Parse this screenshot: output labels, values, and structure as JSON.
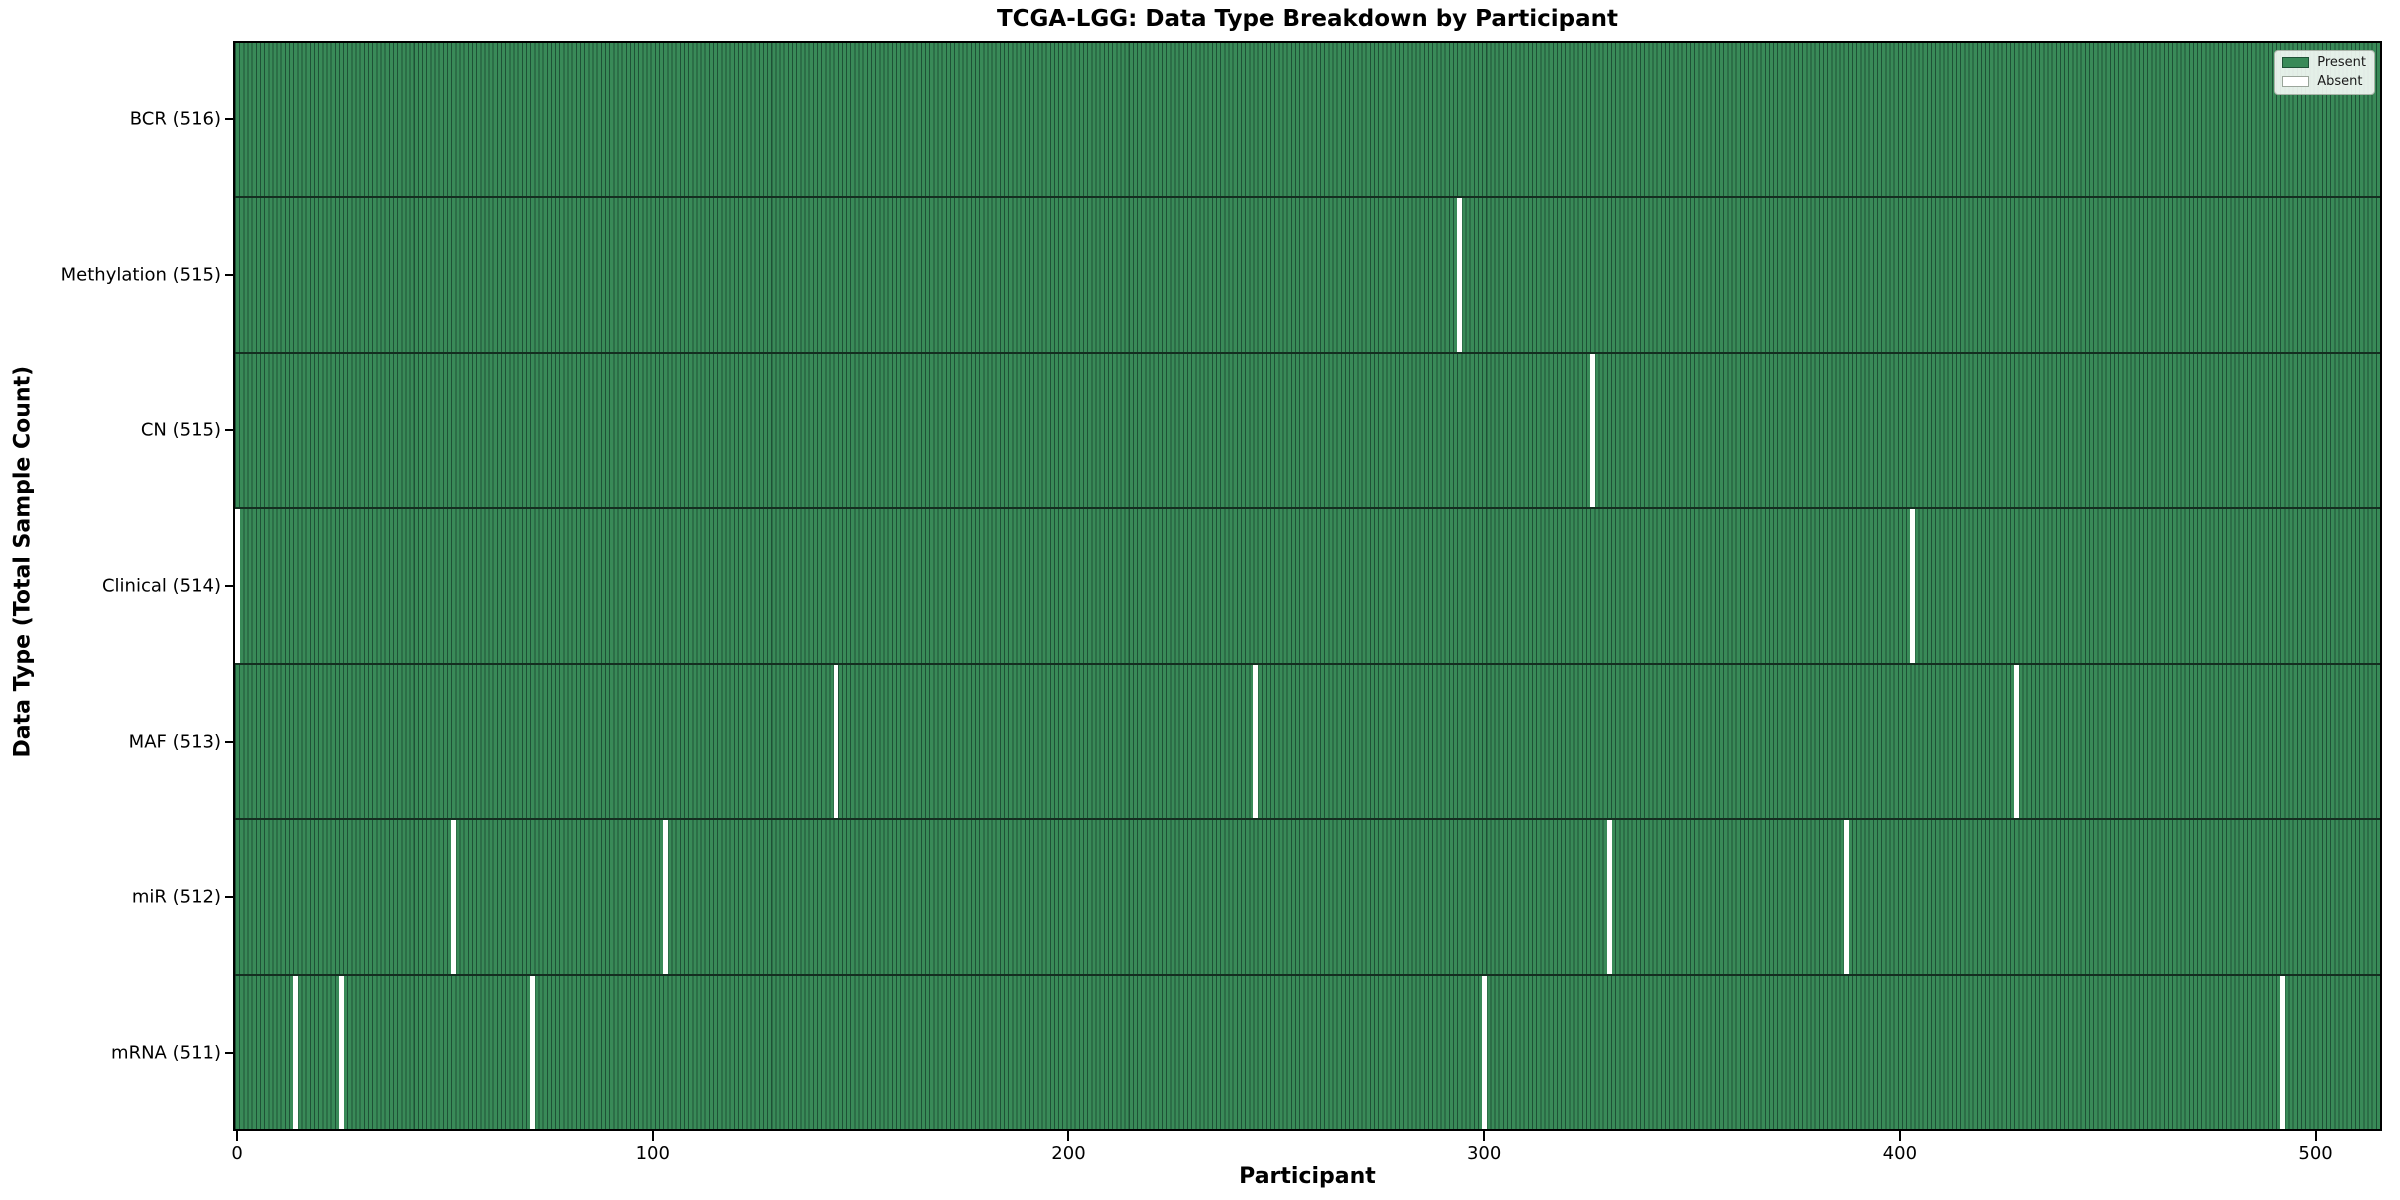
{
  "title": "TCGA-LGG: Data Type Breakdown by Participant",
  "xlabel": "Participant",
  "ylabel": "Data Type (Total Sample Count)",
  "legend": {
    "present_label": "Present",
    "absent_label": "Absent"
  },
  "colors": {
    "present_fill": "#398a58",
    "present_edge": "#1e5136",
    "absent_fill": "#ffffff",
    "legend_swatch_present_border": "#1e5136",
    "legend_swatch_absent_border": "#9aa59a"
  },
  "chart_data": {
    "type": "heatmap",
    "title": "TCGA-LGG: Data Type Breakdown by Participant",
    "xlabel": "Participant",
    "ylabel": "Data Type (Total Sample Count)",
    "n_participants": 516,
    "x_ticks": [
      0,
      100,
      200,
      300,
      400,
      500
    ],
    "x_range": [
      0,
      515
    ],
    "grid": false,
    "legend_entries": [
      "Present",
      "Absent"
    ],
    "legend_position": "upper right",
    "value_encoding": {
      "present": 1,
      "absent": 0
    },
    "rows": [
      {
        "label": "BCR (516)",
        "category": "BCR",
        "total": 516,
        "absent_participants": []
      },
      {
        "label": "Methylation (515)",
        "category": "Methylation",
        "total": 515,
        "absent_participants": [
          294
        ]
      },
      {
        "label": "CN (515)",
        "category": "CN",
        "total": 515,
        "absent_participants": [
          326
        ]
      },
      {
        "label": "Clinical (514)",
        "category": "Clinical",
        "total": 514,
        "absent_participants": [
          0,
          403
        ]
      },
      {
        "label": "MAF (513)",
        "category": "MAF",
        "total": 513,
        "absent_participants": [
          144,
          245,
          428
        ]
      },
      {
        "label": "miR (512)",
        "category": "miR",
        "total": 512,
        "absent_participants": [
          52,
          103,
          330,
          387
        ]
      },
      {
        "label": "mRNA (511)",
        "category": "mRNA",
        "total": 511,
        "absent_participants": [
          14,
          25,
          71,
          300,
          492
        ]
      }
    ]
  }
}
